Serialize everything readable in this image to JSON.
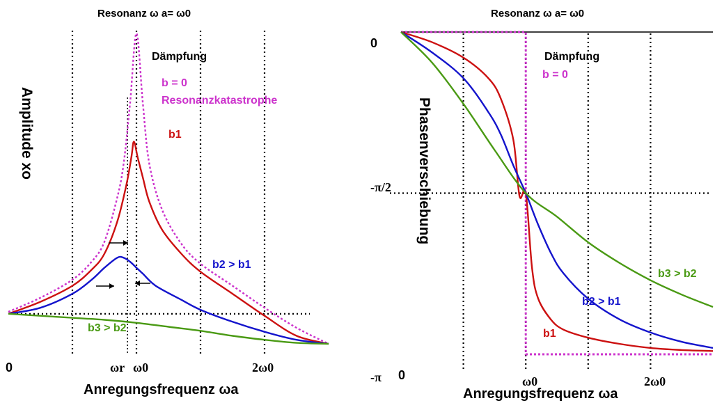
{
  "colors": {
    "b0": "#cc33cc",
    "b1": "#cc1111",
    "b2": "#1414cc",
    "b3": "#4a9a14",
    "axis": "#000000",
    "grid": "#000000"
  },
  "chart_data": [
    {
      "type": "line",
      "title": "Resonanz ω a= ω0",
      "ylabel": "Amplitude xo",
      "xlabel": "Anregungsfrequenz ωa",
      "x_tick_labels": [
        "0",
        "ωr",
        "ω0",
        "2ω0"
      ],
      "annotations": {
        "daempfung": "Dämpfung",
        "b0": "b = 0",
        "katastrophe": "Resonanzkatastrophe",
        "b1": "b1",
        "b2": "b2 > b1",
        "b3": "b3 > b2"
      },
      "xlim": [
        0,
        2.5
      ],
      "grid": "dotted",
      "series": [
        {
          "name": "b = 0",
          "color_key": "b0",
          "style": "dotted",
          "x": [
            0,
            0.25,
            0.5,
            0.65,
            0.75,
            0.85,
            0.9,
            0.95,
            1.0,
            1.05,
            1.1,
            1.2,
            1.35,
            1.5,
            1.75,
            2.0,
            2.25,
            2.5
          ],
          "y": [
            0.21,
            0.28,
            0.37,
            0.46,
            0.56,
            0.78,
            0.95,
            1.25,
            1.6,
            1.25,
            0.95,
            0.72,
            0.55,
            0.45,
            0.34,
            0.23,
            0.13,
            0.05
          ]
        },
        {
          "name": "b1",
          "color_key": "b1",
          "style": "solid",
          "x": [
            0,
            0.25,
            0.5,
            0.65,
            0.75,
            0.85,
            0.92,
            0.96,
            0.98,
            1.01,
            1.05,
            1.1,
            1.2,
            1.35,
            1.5,
            1.75,
            2.0,
            2.25,
            2.5
          ],
          "y": [
            0.2,
            0.26,
            0.34,
            0.42,
            0.5,
            0.66,
            0.84,
            0.98,
            1.06,
            0.98,
            0.88,
            0.76,
            0.62,
            0.5,
            0.41,
            0.3,
            0.19,
            0.09,
            0.05
          ]
        },
        {
          "name": "b2 > b1",
          "color_key": "b2",
          "style": "solid",
          "x": [
            0,
            0.25,
            0.5,
            0.65,
            0.75,
            0.85,
            0.9,
            0.95,
            1.0,
            1.05,
            1.15,
            1.35,
            1.5,
            1.75,
            2.0,
            2.25,
            2.5
          ],
          "y": [
            0.2,
            0.23,
            0.3,
            0.37,
            0.43,
            0.48,
            0.48,
            0.46,
            0.43,
            0.4,
            0.34,
            0.27,
            0.22,
            0.16,
            0.11,
            0.07,
            0.05
          ]
        },
        {
          "name": "b3 > b2",
          "color_key": "b3",
          "style": "solid",
          "x": [
            0,
            0.25,
            0.5,
            0.75,
            1.0,
            1.25,
            1.5,
            1.75,
            2.0,
            2.25,
            2.5
          ],
          "y": [
            0.2,
            0.19,
            0.18,
            0.17,
            0.155,
            0.135,
            0.115,
            0.09,
            0.07,
            0.055,
            0.05
          ]
        }
      ]
    },
    {
      "type": "line",
      "title": "Resonanz ω a= ω0",
      "ylabel": "Phasenverschiebung",
      "xlabel": "Anregungsfrequenz ωa",
      "x_tick_labels": [
        "0",
        "ω0",
        "2ω0"
      ],
      "y_tick_labels": [
        "0",
        "-π/2",
        "-π"
      ],
      "annotations": {
        "daempfung": "Dämpfung",
        "b0": "b = 0",
        "b1": "b1",
        "b2": "b2 > b1",
        "b3": "b3 > b2"
      },
      "xlim": [
        0,
        2.5
      ],
      "ylim": [
        -3.1416,
        0
      ],
      "grid": "dotted",
      "series": [
        {
          "name": "b = 0",
          "color_key": "b0",
          "style": "dotted",
          "x": [
            0,
            1,
            1,
            2.5
          ],
          "y": [
            0,
            0,
            -3.1416,
            -3.1416
          ]
        },
        {
          "name": "b1",
          "color_key": "b1",
          "style": "solid",
          "x": [
            0,
            0.25,
            0.5,
            0.7,
            0.8,
            0.9,
            0.95,
            1.0,
            1.05,
            1.1,
            1.2,
            1.3,
            1.5,
            1.75,
            2.0,
            2.25,
            2.5
          ],
          "y": [
            0,
            -0.1,
            -0.25,
            -0.45,
            -0.65,
            -1.05,
            -1.6,
            -1.5708,
            -2.3,
            -2.6,
            -2.8,
            -2.9,
            -2.98,
            -3.04,
            -3.08,
            -3.1,
            -3.11
          ]
        },
        {
          "name": "b2 > b1",
          "color_key": "b2",
          "style": "solid",
          "x": [
            0,
            0.25,
            0.5,
            0.7,
            0.8,
            0.9,
            1.0,
            1.1,
            1.2,
            1.3,
            1.5,
            1.75,
            2.0,
            2.25,
            2.5
          ],
          "y": [
            0,
            -0.2,
            -0.45,
            -0.78,
            -1.0,
            -1.3,
            -1.5708,
            -1.88,
            -2.15,
            -2.35,
            -2.6,
            -2.8,
            -2.93,
            -3.02,
            -3.08
          ]
        },
        {
          "name": "b3 > b2",
          "color_key": "b3",
          "style": "solid",
          "x": [
            0,
            0.25,
            0.5,
            0.75,
            1.0,
            1.25,
            1.5,
            1.75,
            2.0,
            2.25,
            2.5
          ],
          "y": [
            0,
            -0.3,
            -0.7,
            -1.15,
            -1.5708,
            -1.8,
            -2.05,
            -2.25,
            -2.42,
            -2.56,
            -2.68
          ]
        }
      ]
    }
  ]
}
